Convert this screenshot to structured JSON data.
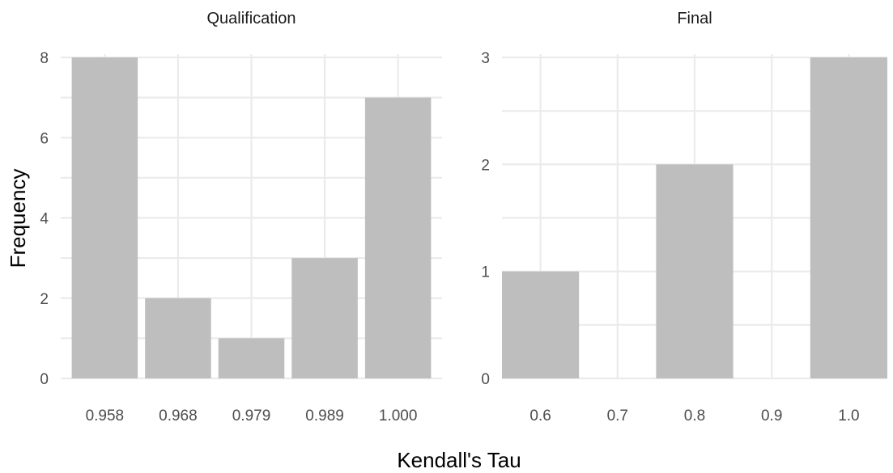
{
  "chart_data": {
    "type": "bar",
    "xlabel": "Kendall's Tau",
    "ylabel": "Frequency",
    "facets": [
      {
        "title": "Qualification",
        "x_kind": "categorical",
        "categories": [
          "0.958",
          "0.968",
          "0.979",
          "0.989",
          "1.000"
        ],
        "values": [
          8,
          2,
          1,
          3,
          7
        ],
        "yticks": [
          0,
          2,
          4,
          6,
          8
        ],
        "ylim": [
          0,
          8
        ]
      },
      {
        "title": "Final",
        "x_kind": "continuous",
        "x": [
          0.6,
          0.8,
          1.0
        ],
        "values": [
          1,
          2,
          3
        ],
        "bar_width": 0.1,
        "xticks": [
          "0.6",
          "0.7",
          "0.8",
          "0.9",
          "1.0"
        ],
        "xlim": [
          0.55,
          1.05
        ],
        "yticks": [
          0,
          1,
          2,
          3
        ],
        "ylim": [
          0,
          3
        ]
      }
    ],
    "grid": true,
    "bar_color": "#bebebe",
    "grid_color": "#ebebeb"
  }
}
